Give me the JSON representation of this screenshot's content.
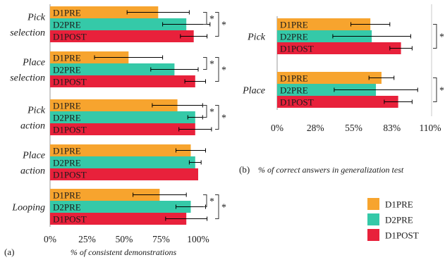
{
  "chart_data": [
    {
      "type": "bar",
      "orientation": "horizontal",
      "panel_label": "(a)",
      "xlabel": "% of consistent demonstrations",
      "ylabel": "",
      "xlim": [
        0,
        100
      ],
      "xticks": [
        0,
        25,
        50,
        75,
        100
      ],
      "xtick_labels": [
        "0%",
        "25%",
        "50%",
        "75%",
        "100%"
      ],
      "grid": false,
      "bar_text_shows_series_name": true,
      "categories": [
        {
          "label": "Pick selection",
          "lines": [
            "Pick",
            "selection"
          ]
        },
        {
          "label": "Place selection",
          "lines": [
            "Place",
            "selection"
          ]
        },
        {
          "label": "Pick action",
          "lines": [
            "Pick",
            "action"
          ]
        },
        {
          "label": "Place action",
          "lines": [
            "Place",
            "action"
          ]
        },
        {
          "label": "Looping",
          "lines": [
            "Looping"
          ]
        }
      ],
      "series": [
        {
          "name": "D1PRE",
          "values": [
            73,
            53,
            86,
            95,
            74
          ],
          "err_low": [
            21,
            23,
            17,
            10,
            18
          ],
          "err_high": [
            21,
            23,
            17,
            10,
            18
          ]
        },
        {
          "name": "D2PRE",
          "values": [
            92,
            84,
            98,
            98,
            95
          ],
          "err_low": [
            16,
            16,
            5,
            4,
            10
          ],
          "err_high": [
            16,
            16,
            5,
            4,
            10
          ]
        },
        {
          "name": "D1POST",
          "values": [
            97,
            98,
            98,
            100,
            92
          ],
          "err_low": [
            9,
            7,
            11,
            0,
            14
          ],
          "err_high": [
            9,
            7,
            11,
            0,
            14
          ]
        }
      ],
      "significance": [
        {
          "category": "Pick selection",
          "pairs": [
            [
              "D1PRE",
              "D2PRE"
            ],
            [
              "D1PRE",
              "D1POST"
            ]
          ],
          "marker": "*"
        },
        {
          "category": "Place selection",
          "pairs": [
            [
              "D1PRE",
              "D2PRE"
            ],
            [
              "D1PRE",
              "D1POST"
            ]
          ],
          "marker": "*"
        },
        {
          "category": "Pick action",
          "pairs": [
            [
              "D1PRE",
              "D2PRE"
            ],
            [
              "D1PRE",
              "D1POST"
            ]
          ],
          "marker": "*"
        },
        {
          "category": "Looping",
          "pairs": [
            [
              "D1PRE",
              "D2PRE"
            ],
            [
              "D1PRE",
              "D1POST"
            ]
          ],
          "marker": "*"
        }
      ]
    },
    {
      "type": "bar",
      "orientation": "horizontal",
      "panel_label": "(b)",
      "xlabel": "% of correct answers in generalization test",
      "ylabel": "",
      "xlim": [
        0,
        110
      ],
      "xticks": [
        0,
        27.5,
        55,
        82.5,
        110
      ],
      "xtick_labels": [
        "0%",
        "28%",
        "55%",
        "83%",
        "110%"
      ],
      "grid": false,
      "bar_text_shows_series_name": true,
      "categories": [
        {
          "label": "Pick",
          "lines": [
            "Pick"
          ]
        },
        {
          "label": "Place",
          "lines": [
            "Place"
          ]
        }
      ],
      "series": [
        {
          "name": "D1PRE",
          "values": [
            67,
            75
          ],
          "err_low": [
            14,
            9
          ],
          "err_high": [
            14,
            9
          ]
        },
        {
          "name": "D2PRE",
          "values": [
            68,
            71
          ],
          "err_low": [
            28,
            30
          ],
          "err_high": [
            28,
            30
          ]
        },
        {
          "name": "D1POST",
          "values": [
            89,
            87
          ],
          "err_low": [
            8,
            10
          ],
          "err_high": [
            8,
            10
          ]
        }
      ],
      "significance": [
        {
          "category": "Pick",
          "pairs": [
            [
              "D1PRE",
              "D1POST"
            ]
          ],
          "marker": "*"
        },
        {
          "category": "Place",
          "pairs": [
            [
              "D1PRE",
              "D1POST"
            ]
          ],
          "marker": "*"
        }
      ]
    }
  ],
  "legend": {
    "placement": "bottom-right",
    "items": [
      "D1PRE",
      "D2PRE",
      "D1POST"
    ]
  },
  "colors": {
    "D1PRE": "#f7a42e",
    "D2PRE": "#35c9a8",
    "D1POST": "#e8213b",
    "axis": "#9a9a9a",
    "text": "#1a1a1a"
  }
}
